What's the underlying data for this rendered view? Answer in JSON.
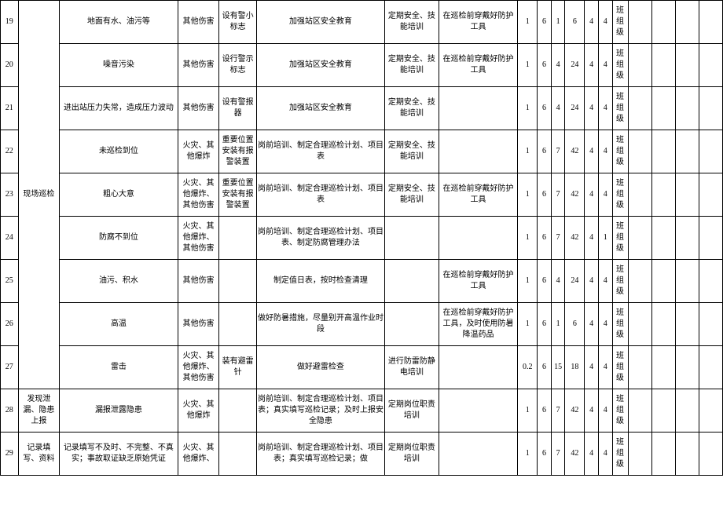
{
  "rows": [
    {
      "num": "19",
      "cat": "",
      "hazard": "地面有水、油污等",
      "type": "其他伤害",
      "measure": "设有警小标志",
      "training": "加强站区安全教育",
      "training2": "定期安全、技能培训",
      "protect": "在巡检前穿戴好防护工具",
      "n1": "1",
      "n2": "6",
      "n3": "1",
      "n4": "6",
      "n5": "4",
      "n6": "4",
      "level": "班组级"
    },
    {
      "num": "20",
      "cat": "",
      "hazard": "噪音污染",
      "type": "其他伤害",
      "measure": "设行警示标志",
      "training": "加强站区安全教育",
      "training2": "定期安全、技能培训",
      "protect": "在巡检前穿戴好防护工具",
      "n1": "1",
      "n2": "6",
      "n3": "4",
      "n4": "24",
      "n5": "4",
      "n6": "4",
      "level": "班组级"
    },
    {
      "num": "21",
      "cat": "",
      "hazard": "进出站压力失常，造成压力波动",
      "type": "其他伤害",
      "measure": "设有警报器",
      "training": "加强站区安全教育",
      "training2": "定期安全、技能培训",
      "protect": "",
      "n1": "1",
      "n2": "6",
      "n3": "4",
      "n4": "24",
      "n5": "4",
      "n6": "4",
      "level": "班组级"
    },
    {
      "num": "22",
      "cat": "",
      "hazard": "未巡检到位",
      "type": "火灾、其他爆炸",
      "measure": "重要位置安装有报警装置",
      "training": "岗前培训、制定合理巡检计划、项目表",
      "training2": "定期安全、技能培训",
      "protect": "",
      "n1": "1",
      "n2": "6",
      "n3": "7",
      "n4": "42",
      "n5": "4",
      "n6": "4",
      "level": "班组级"
    },
    {
      "num": "23",
      "cat": "现场巡检",
      "hazard": "粗心大意",
      "type": "火灾、其他爆炸、其他伤害",
      "measure": "重要位置安装有报警装置",
      "training": "岗前培训、制定合理巡检计划、项目表",
      "training2": "定期安全、技能培训",
      "protect": "在巡检前穿戴好防护工具",
      "n1": "1",
      "n2": "6",
      "n3": "7",
      "n4": "42",
      "n5": "4",
      "n6": "4",
      "level": "班组级"
    },
    {
      "num": "24",
      "cat": "",
      "hazard": "防腐不到位",
      "type": "火灾、其他爆炸、其他伤害",
      "measure": "",
      "training": "岗前培训、制定合理巡检计划、项目表、制定防腐管理办法",
      "training2": "",
      "protect": "",
      "n1": "1",
      "n2": "6",
      "n3": "7",
      "n4": "42",
      "n5": "4",
      "n6": "1",
      "level": "班组级"
    },
    {
      "num": "25",
      "cat": "",
      "hazard": "油污、积水",
      "type": "其他伤害",
      "measure": "",
      "training": "制定值日表，按时检查清理",
      "training2": "",
      "protect": "在巡检前穿戴好防护工具",
      "n1": "1",
      "n2": "6",
      "n3": "4",
      "n4": "24",
      "n5": "4",
      "n6": "4",
      "level": "班组级"
    },
    {
      "num": "26",
      "cat": "",
      "hazard": "高温",
      "type": "其他伤害",
      "measure": "",
      "training": "做好防暑措施，尽量别开高温作业时段",
      "training2": "",
      "protect": "在巡检前穿戴好防护工具，及时使用防暑降温药品",
      "n1": "1",
      "n2": "6",
      "n3": "1",
      "n4": "6",
      "n5": "4",
      "n6": "4",
      "level": "班组级"
    },
    {
      "num": "27",
      "cat": "",
      "hazard": "雷击",
      "type": "火灾、其他爆炸、其他伤害",
      "measure": "装有避雷针",
      "training": "做好避雷检查",
      "training2": "进行防雷防静电培训",
      "protect": "",
      "n1": "0.2",
      "n2": "6",
      "n3": "15",
      "n4": "18",
      "n5": "4",
      "n6": "4",
      "level": "班组级"
    },
    {
      "num": "28",
      "cat": "发现泄漏、隐患上报",
      "hazard": "漏报泄露隐患",
      "type": "火灾、其他爆炸",
      "measure": "",
      "training": "岗前培训、制定合理巡检计划、项目表；真实填写巡检记录；及时上报安全隐患",
      "training2": "定期岗位职责培训",
      "protect": "",
      "n1": "1",
      "n2": "6",
      "n3": "7",
      "n4": "42",
      "n5": "4",
      "n6": "4",
      "level": "班组级"
    },
    {
      "num": "29",
      "cat": "记录填写、资料",
      "hazard": "记录填写不及时、不完整、不真实；事故取证缺乏原始凭证",
      "type": "火灾、其他爆炸、",
      "measure": "",
      "training": "岗前培训、制定合理巡检计划、项目表；真实填写巡检记录；做",
      "training2": "定期岗位职责培训",
      "protect": "",
      "n1": "1",
      "n2": "6",
      "n3": "7",
      "n4": "42",
      "n5": "4",
      "n6": "4",
      "level": "班组级"
    }
  ],
  "merged_cat_start": 0,
  "merged_cat_end": 8
}
